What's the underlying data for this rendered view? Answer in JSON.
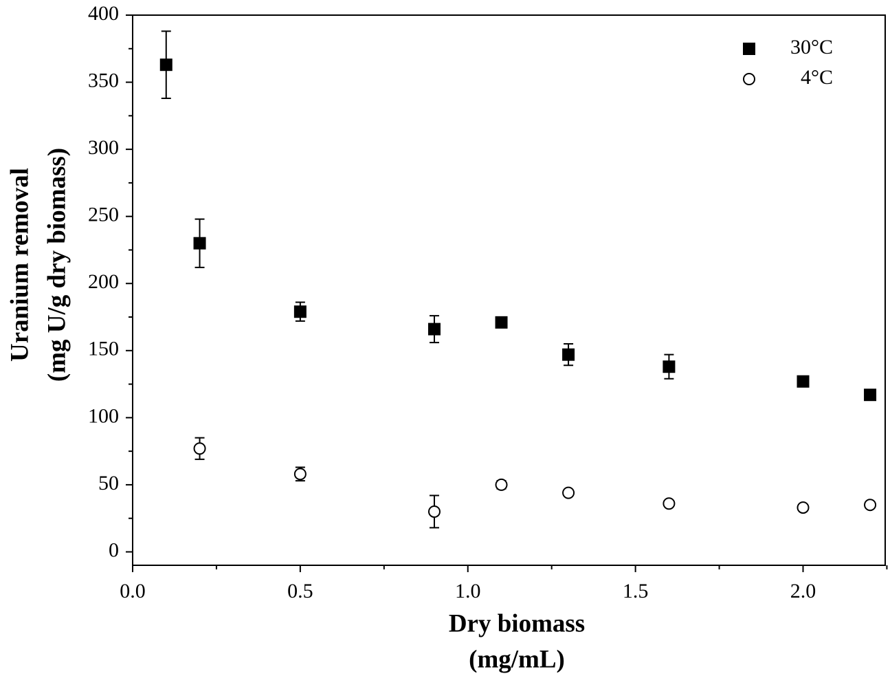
{
  "chart_data": {
    "type": "scatter",
    "xlabel": [
      "Dry biomass",
      "(mg/mL)"
    ],
    "ylabel": [
      "Uranium removal",
      "(mg U/g dry biomass)"
    ],
    "xlim": [
      0,
      2.245
    ],
    "ylim": [
      -10,
      400
    ],
    "xticks": [
      {
        "value": 0,
        "label": "0.0"
      },
      {
        "value": 0.5,
        "label": "0.5"
      },
      {
        "value": 1,
        "label": "1.0"
      },
      {
        "value": 1.5,
        "label": "1.5"
      },
      {
        "value": 2,
        "label": "2.0"
      }
    ],
    "xticks_minor": [
      0.25,
      0.75,
      1.25,
      1.75,
      2.25
    ],
    "yticks": [
      0,
      50,
      100,
      150,
      200,
      250,
      300,
      350,
      400
    ],
    "yticks_minor": [
      25,
      75,
      125,
      175,
      225,
      275,
      325,
      375
    ],
    "legend": "upper right",
    "series": [
      {
        "name": "30°C",
        "color": "#000000",
        "marker": "square",
        "filled": true,
        "x": [
          0.1,
          0.2,
          0.5,
          0.9,
          1.1,
          1.3,
          1.6,
          2.0,
          2.2
        ],
        "values": [
          363,
          230,
          179,
          166,
          171,
          147,
          138,
          127,
          117
        ],
        "errors": [
          25,
          18,
          7,
          10,
          3,
          8,
          9,
          2,
          2
        ]
      },
      {
        "name": "4°C",
        "color": "#000000",
        "marker": "circle",
        "filled": false,
        "x": [
          0.2,
          0.5,
          0.9,
          1.1,
          1.3,
          1.6,
          2.0,
          2.2
        ],
        "values": [
          77,
          58,
          30,
          50,
          44,
          36,
          33,
          35
        ],
        "errors": [
          8,
          5,
          12,
          3,
          2,
          2,
          2,
          2
        ]
      }
    ]
  }
}
